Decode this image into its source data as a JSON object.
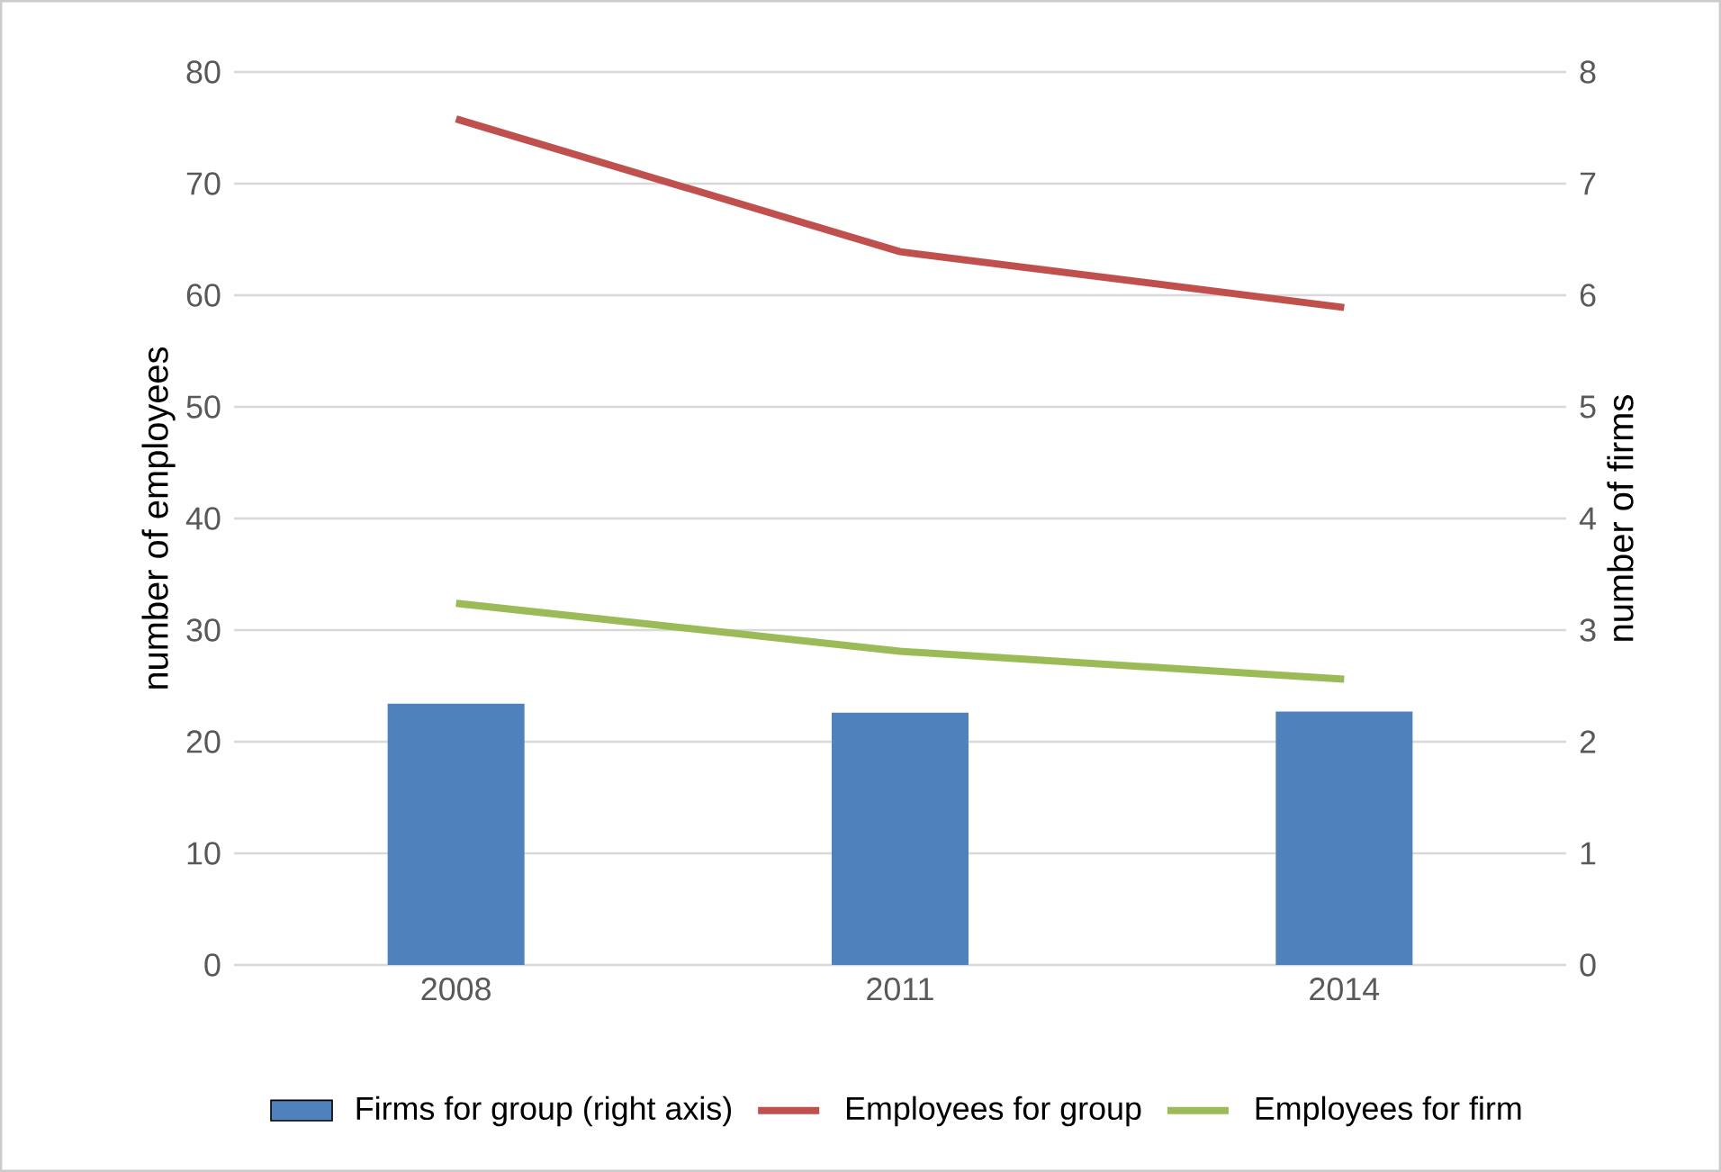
{
  "chart_data": {
    "type": "line",
    "categories": [
      "2008",
      "2011",
      "2014"
    ],
    "series": [
      {
        "name": "Firms for group (right axis)",
        "type": "bar",
        "axis": "y2",
        "color": "#4f81bd",
        "values": [
          2.34,
          2.26,
          2.27
        ]
      },
      {
        "name": "Employees for group",
        "color": "#c0504d",
        "values": [
          75.8,
          63.9,
          58.9
        ]
      },
      {
        "name": "Employees for firm",
        "color": "#9bbb59",
        "values": [
          32.4,
          28.1,
          25.6
        ]
      }
    ],
    "ylabel": "number of employees",
    "y2label": "number of firms",
    "ylim": [
      0,
      80
    ],
    "yticks": [
      0,
      10,
      20,
      30,
      40,
      50,
      60,
      70,
      80
    ],
    "y2lim": [
      0,
      8
    ],
    "y2ticks": [
      0,
      1,
      2,
      3,
      4,
      5,
      6,
      7,
      8
    ],
    "grid": "y",
    "legend": "bottom"
  }
}
